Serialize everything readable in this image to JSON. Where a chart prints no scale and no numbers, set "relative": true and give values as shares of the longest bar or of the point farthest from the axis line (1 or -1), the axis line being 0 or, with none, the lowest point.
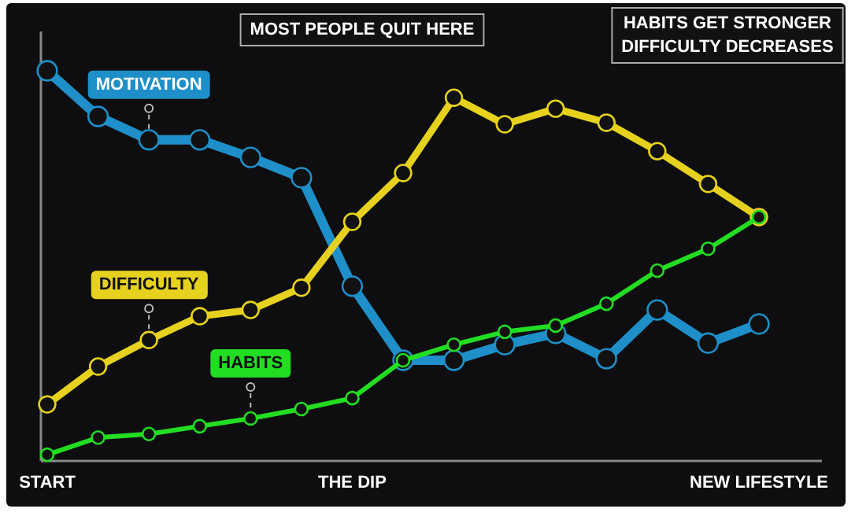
{
  "chart_data": {
    "type": "line",
    "relative": true,
    "marker": "circle",
    "categories": [
      "START",
      null,
      null,
      null,
      null,
      null,
      "THE DIP",
      null,
      null,
      null,
      null,
      null,
      null,
      null,
      "NEW LIFESTYLE"
    ],
    "series": [
      {
        "name": "MOTIVATION",
        "color": "#1e8fc8",
        "values": [
          1.0,
          0.883,
          0.823,
          0.823,
          0.778,
          0.726,
          0.448,
          0.258,
          0.258,
          0.298,
          0.327,
          0.262,
          0.387,
          0.302,
          0.351
        ]
      },
      {
        "name": "DIFFICULTY",
        "color": "#e6d11e",
        "values": [
          0.145,
          0.242,
          0.31,
          0.371,
          0.387,
          0.444,
          0.613,
          0.738,
          0.931,
          0.863,
          0.903,
          0.867,
          0.794,
          0.71,
          0.625
        ]
      },
      {
        "name": "HABITS",
        "color": "#22dd22",
        "values": [
          0.016,
          0.06,
          0.069,
          0.089,
          0.109,
          0.133,
          0.161,
          0.258,
          0.298,
          0.331,
          0.347,
          0.403,
          0.488,
          0.544,
          0.625
        ]
      }
    ],
    "annotations": [
      "MOST PEOPLE QUIT HERE",
      "HABITS GET STRONGER DIFFICULTY DECREASES"
    ]
  }
}
